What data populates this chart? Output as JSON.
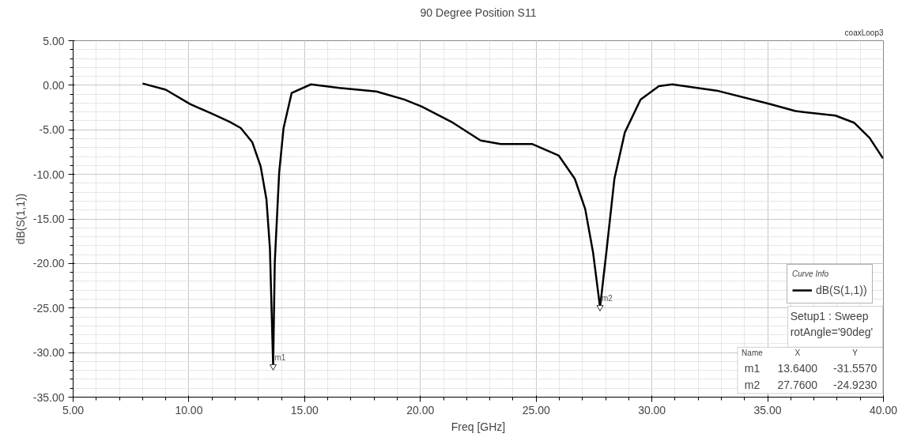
{
  "chart_data": {
    "type": "line",
    "title": "90 Degree Position S11",
    "xlabel": "Freq [GHz]",
    "ylabel": "dB(S(1,1))",
    "legend_title": "Curve Info",
    "x": [
      8,
      9,
      10.05,
      11,
      11.76,
      12.24,
      12.74,
      13.1,
      13.35,
      13.5,
      13.64,
      13.71,
      13.9,
      14.09,
      14.44,
      15.27,
      16.5,
      18.1,
      19.3,
      20.06,
      21.4,
      22.6,
      23.47,
      24.84,
      25.98,
      26.67,
      27.12,
      27.46,
      27.76,
      28.03,
      28.38,
      28.83,
      29.51,
      30.3,
      30.88,
      32.8,
      35.08,
      36.2,
      37.93,
      38.73,
      39.4,
      39.98
    ],
    "series": [
      {
        "name": "dB(S(1,1))",
        "color": "#000000",
        "values": [
          0.2,
          -0.5,
          -2.1,
          -3.2,
          -4.1,
          -4.8,
          -6.4,
          -9.1,
          -12.8,
          -18.3,
          -31.557,
          -19.9,
          -9.8,
          -4.8,
          -0.86,
          0.1,
          -0.3,
          -0.7,
          -1.6,
          -2.4,
          -4.2,
          -6.2,
          -6.6,
          -6.6,
          -7.9,
          -10.5,
          -13.9,
          -18.8,
          -24.923,
          -18.8,
          -10.5,
          -5.3,
          -1.6,
          -0.1,
          0.1,
          -0.6,
          -2.1,
          -2.9,
          -3.4,
          -4.2,
          -5.9,
          -8.2
        ]
      }
    ],
    "xlim": [
      5,
      40
    ],
    "ylim": [
      -35,
      5
    ],
    "xticks": [
      {
        "value": 5,
        "label": "5.00"
      },
      {
        "value": 10,
        "label": "10.00"
      },
      {
        "value": 15,
        "label": "15.00"
      },
      {
        "value": 20,
        "label": "20.00"
      },
      {
        "value": 25,
        "label": "25.00"
      },
      {
        "value": 30,
        "label": "30.00"
      },
      {
        "value": 35,
        "label": "35.00"
      },
      {
        "value": 40,
        "label": "40.00"
      }
    ],
    "yticks": [
      {
        "value": -35,
        "label": "-35.00"
      },
      {
        "value": -30,
        "label": "-30.00"
      },
      {
        "value": -25,
        "label": "-25.00"
      },
      {
        "value": -20,
        "label": "-20.00"
      },
      {
        "value": -15,
        "label": "-15.00"
      },
      {
        "value": -10,
        "label": "-10.00"
      },
      {
        "value": -5,
        "label": "-5.00"
      },
      {
        "value": 0,
        "label": "0.00"
      },
      {
        "value": 5,
        "label": "5.00"
      }
    ],
    "grid": true,
    "legend": "bottom right",
    "marker": "none",
    "line_style": "solid",
    "annotations": [
      "coaxLoop3",
      "Setup1 : Sweep",
      "rotAngle='90deg'",
      "Name",
      "X",
      "Y",
      "m1",
      "13.6400",
      "-31.5570",
      "m2",
      "27.7600",
      "-24.9230",
      {
        "text": "m1",
        "x": 13.64,
        "y": -31.557
      },
      {
        "text": "m2",
        "x": 27.76,
        "y": -24.923
      }
    ]
  }
}
